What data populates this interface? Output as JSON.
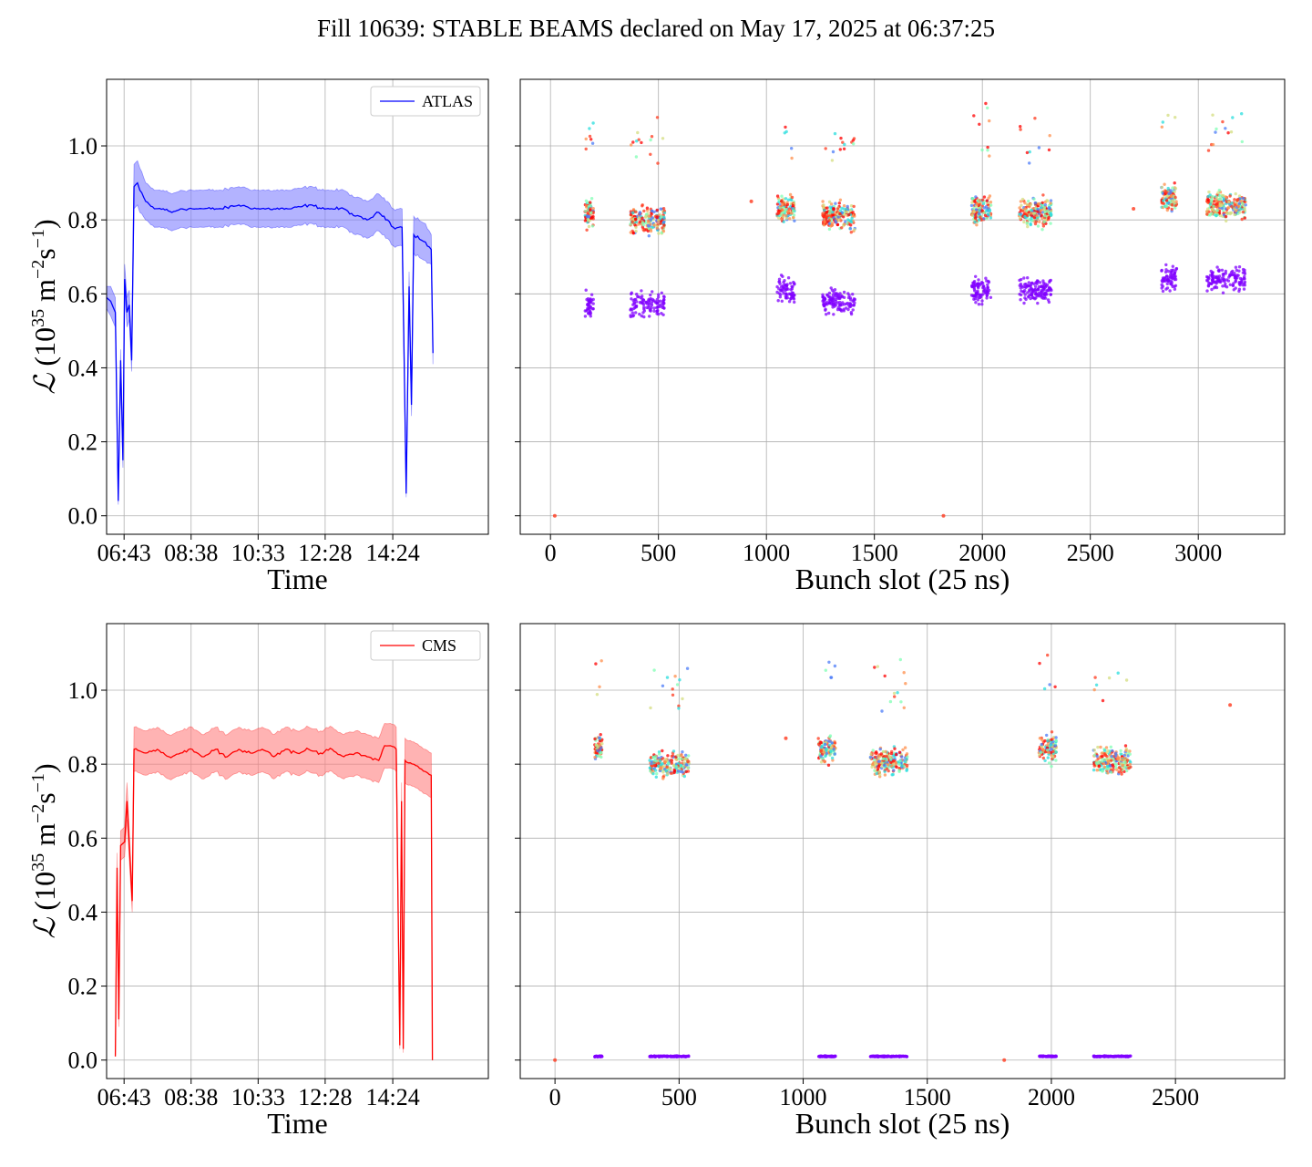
{
  "title": "Fill 10639: STABLE BEAMS declared on May 17, 2025 at 06:37:25",
  "chart_data": [
    {
      "id": "atlas_time",
      "type": "line",
      "series": [
        {
          "name": "ATLAS",
          "color": "#0000ff",
          "band_color": "#8080ff"
        }
      ],
      "xlabel": "Time",
      "ylabel": "ℒ (10^35 m^-2 s^-1)",
      "xticks": [
        "06:43",
        "08:38",
        "10:33",
        "12:28",
        "14:24"
      ],
      "xlim": [
        "06:13",
        "17:08"
      ],
      "ylim": [
        -0.05,
        1.18
      ],
      "yticks": [
        "0.0",
        "0.2",
        "0.4",
        "0.6",
        "0.8",
        "1.0"
      ],
      "grid": true,
      "legend": "top-right",
      "points": [
        [
          "06:13",
          0.59,
          0.03
        ],
        [
          "06:20",
          0.58,
          0.04
        ],
        [
          "06:28",
          0.55,
          0.04
        ],
        [
          "06:33",
          0.04,
          0.01
        ],
        [
          "06:37",
          0.42,
          0.03
        ],
        [
          "06:41",
          0.15,
          0.02
        ],
        [
          "06:44",
          0.64,
          0.04
        ],
        [
          "06:48",
          0.55,
          0.04
        ],
        [
          "06:52",
          0.57,
          0.04
        ],
        [
          "06:56",
          0.42,
          0.03
        ],
        [
          "07:00",
          0.89,
          0.06
        ],
        [
          "07:06",
          0.9,
          0.06
        ],
        [
          "07:10",
          0.88,
          0.06
        ],
        [
          "07:20",
          0.85,
          0.05
        ],
        [
          "07:35",
          0.83,
          0.05
        ],
        [
          "07:50",
          0.83,
          0.05
        ],
        [
          "08:05",
          0.82,
          0.05
        ],
        [
          "08:20",
          0.83,
          0.05
        ],
        [
          "08:40",
          0.83,
          0.05
        ],
        [
          "09:00",
          0.83,
          0.05
        ],
        [
          "09:30",
          0.83,
          0.05
        ],
        [
          "10:00",
          0.84,
          0.05
        ],
        [
          "10:30",
          0.83,
          0.05
        ],
        [
          "11:00",
          0.83,
          0.05
        ],
        [
          "11:30",
          0.83,
          0.05
        ],
        [
          "12:00",
          0.84,
          0.05
        ],
        [
          "12:30",
          0.83,
          0.05
        ],
        [
          "13:00",
          0.83,
          0.05
        ],
        [
          "13:20",
          0.81,
          0.05
        ],
        [
          "13:40",
          0.8,
          0.05
        ],
        [
          "14:00",
          0.82,
          0.05
        ],
        [
          "14:15",
          0.8,
          0.05
        ],
        [
          "14:25",
          0.78,
          0.05
        ],
        [
          "14:40",
          0.78,
          0.05
        ],
        [
          "14:47",
          0.06,
          0.01
        ],
        [
          "14:52",
          0.62,
          0.04
        ],
        [
          "14:56",
          0.3,
          0.03
        ],
        [
          "15:00",
          0.76,
          0.05
        ],
        [
          "15:20",
          0.74,
          0.05
        ],
        [
          "15:30",
          0.72,
          0.04
        ],
        [
          "15:33",
          0.44,
          0.03
        ]
      ]
    },
    {
      "id": "atlas_bunch",
      "type": "scatter",
      "xlabel": "Bunch slot (25 ns)",
      "xlim": [
        -140,
        3400
      ],
      "ylim": [
        -0.05,
        1.18
      ],
      "xticks": [
        0,
        500,
        1000,
        1500,
        2000,
        2500,
        3000
      ],
      "grid": true,
      "clusters": [
        {
          "x": [
            160,
            200
          ],
          "high": 0.82,
          "low": 0.57
        },
        {
          "x": [
            370,
            530
          ],
          "high": 0.8,
          "low": 0.57
        },
        {
          "x": [
            1050,
            1130
          ],
          "high": 0.83,
          "low": 0.61
        },
        {
          "x": [
            1260,
            1410
          ],
          "high": 0.81,
          "low": 0.58
        },
        {
          "x": [
            1950,
            2040
          ],
          "high": 0.83,
          "low": 0.61
        },
        {
          "x": [
            2170,
            2320
          ],
          "high": 0.82,
          "low": 0.61
        },
        {
          "x": [
            2830,
            2900
          ],
          "high": 0.86,
          "low": 0.64
        },
        {
          "x": [
            3040,
            3220
          ],
          "high": 0.84,
          "low": 0.64
        }
      ],
      "isolated": [
        [
          20,
          0.0
        ],
        [
          930,
          0.85
        ],
        [
          1820,
          0.0
        ],
        [
          2700,
          0.83
        ]
      ]
    },
    {
      "id": "cms_time",
      "type": "line",
      "series": [
        {
          "name": "CMS",
          "color": "#ff0000",
          "band_color": "#ff8080"
        }
      ],
      "xlabel": "Time",
      "ylabel": "ℒ (10^35 m^-2 s^-1)",
      "xticks": [
        "06:43",
        "08:38",
        "10:33",
        "12:28",
        "14:24"
      ],
      "xlim": [
        "06:13",
        "17:08"
      ],
      "ylim": [
        -0.05,
        1.18
      ],
      "yticks": [
        "0.0",
        "0.2",
        "0.4",
        "0.6",
        "0.8",
        "1.0"
      ],
      "grid": true,
      "legend": "top-right",
      "points": [
        [
          "06:28",
          0.01,
          0.0
        ],
        [
          "06:31",
          0.52,
          0.04
        ],
        [
          "06:34",
          0.11,
          0.02
        ],
        [
          "06:37",
          0.58,
          0.04
        ],
        [
          "06:44",
          0.59,
          0.04
        ],
        [
          "06:48",
          0.7,
          0.05
        ],
        [
          "06:52",
          0.58,
          0.04
        ],
        [
          "06:57",
          0.43,
          0.03
        ],
        [
          "07:00",
          0.84,
          0.06
        ],
        [
          "07:20",
          0.83,
          0.06
        ],
        [
          "07:40",
          0.84,
          0.06
        ],
        [
          "08:00",
          0.82,
          0.06
        ],
        [
          "08:20",
          0.83,
          0.06
        ],
        [
          "08:40",
          0.84,
          0.06
        ],
        [
          "09:00",
          0.82,
          0.06
        ],
        [
          "09:20",
          0.84,
          0.06
        ],
        [
          "09:40",
          0.82,
          0.06
        ],
        [
          "10:00",
          0.84,
          0.06
        ],
        [
          "10:20",
          0.83,
          0.06
        ],
        [
          "10:40",
          0.84,
          0.06
        ],
        [
          "11:00",
          0.82,
          0.06
        ],
        [
          "11:20",
          0.84,
          0.06
        ],
        [
          "11:40",
          0.83,
          0.06
        ],
        [
          "12:00",
          0.84,
          0.06
        ],
        [
          "12:20",
          0.83,
          0.06
        ],
        [
          "12:40",
          0.84,
          0.06
        ],
        [
          "13:00",
          0.82,
          0.06
        ],
        [
          "13:20",
          0.83,
          0.06
        ],
        [
          "13:40",
          0.82,
          0.06
        ],
        [
          "14:00",
          0.81,
          0.06
        ],
        [
          "14:10",
          0.85,
          0.06
        ],
        [
          "14:20",
          0.85,
          0.06
        ],
        [
          "14:30",
          0.84,
          0.06
        ],
        [
          "14:36",
          0.04,
          0.01
        ],
        [
          "14:39",
          0.7,
          0.05
        ],
        [
          "14:42",
          0.03,
          0.01
        ],
        [
          "14:45",
          0.81,
          0.06
        ],
        [
          "15:00",
          0.8,
          0.06
        ],
        [
          "15:20",
          0.78,
          0.06
        ],
        [
          "15:30",
          0.77,
          0.06
        ],
        [
          "15:32",
          0.0,
          0.0
        ]
      ]
    },
    {
      "id": "cms_bunch",
      "type": "scatter",
      "xlabel": "Bunch slot (25 ns)",
      "xlim": [
        -140,
        2940
      ],
      "ylim": [
        -0.05,
        1.18
      ],
      "xticks": [
        0,
        500,
        1000,
        1500,
        2000,
        2500
      ],
      "grid": true,
      "clusters": [
        {
          "x": [
            160,
            190
          ],
          "high": 0.84,
          "low": 0.01
        },
        {
          "x": [
            380,
            540
          ],
          "high": 0.8,
          "low": 0.01
        },
        {
          "x": [
            1060,
            1130
          ],
          "high": 0.84,
          "low": 0.01
        },
        {
          "x": [
            1270,
            1420
          ],
          "high": 0.81,
          "low": 0.01
        },
        {
          "x": [
            1950,
            2020
          ],
          "high": 0.84,
          "low": 0.01
        },
        {
          "x": [
            2170,
            2320
          ],
          "high": 0.81,
          "low": 0.01
        }
      ],
      "isolated": [
        [
          0,
          0.0
        ],
        [
          930,
          0.87
        ],
        [
          1810,
          0.0
        ],
        [
          2720,
          0.96
        ]
      ]
    }
  ]
}
